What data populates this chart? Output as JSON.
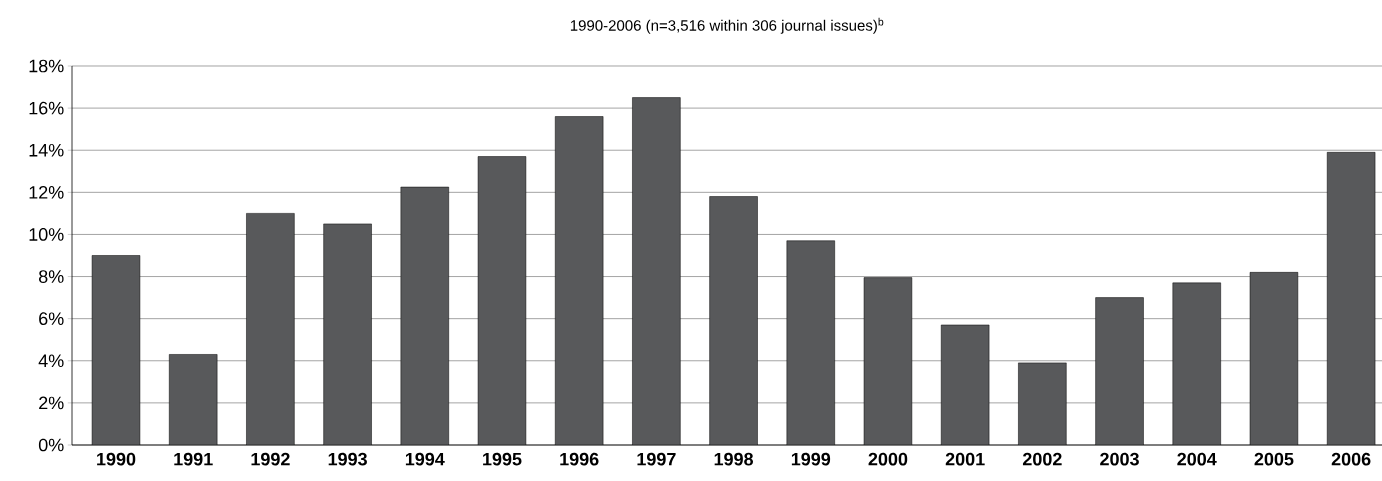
{
  "chart_data": {
    "type": "bar",
    "title": "1990-2006 (n=3,516 within 306 journal issues)$^{b}$",
    "categories": [
      "1990",
      "1991",
      "1992",
      "1993",
      "1994",
      "1995",
      "1996",
      "1997",
      "1998",
      "1999",
      "2000",
      "2001",
      "2002",
      "2003",
      "2004",
      "2005",
      "2006"
    ],
    "values": [
      9.0,
      4.3,
      11.0,
      10.5,
      12.25,
      13.7,
      15.6,
      16.5,
      11.8,
      9.7,
      7.95,
      5.7,
      3.9,
      7.0,
      7.7,
      8.2,
      13.9
    ],
    "color": "#58595b",
    "ylim": [
      0,
      18
    ],
    "yticks": [
      {
        "value": 0,
        "label": "0%"
      },
      {
        "value": 2,
        "label": "2%"
      },
      {
        "value": 4,
        "label": "4%"
      },
      {
        "value": 6,
        "label": "6%"
      },
      {
        "value": 8,
        "label": "8%"
      },
      {
        "value": 10,
        "label": "10%"
      },
      {
        "value": 12,
        "label": "12%"
      },
      {
        "value": 14,
        "label": "14%"
      },
      {
        "value": 16,
        "label": "16%"
      },
      {
        "value": 18,
        "label": "18%"
      }
    ],
    "grid": "y"
  }
}
